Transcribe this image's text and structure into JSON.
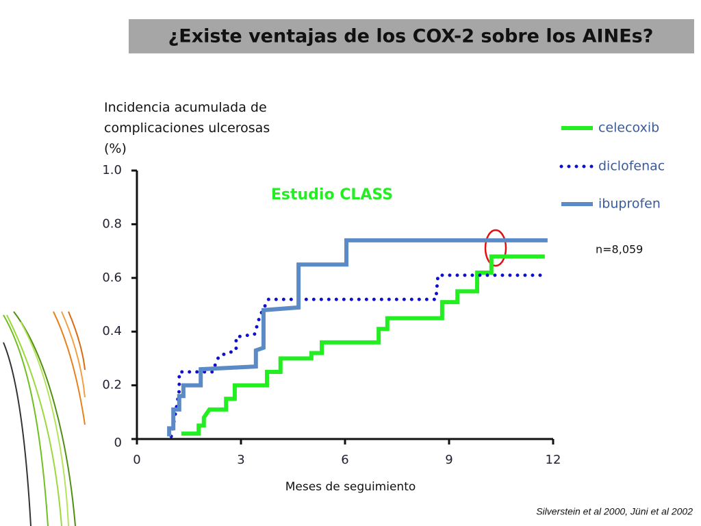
{
  "slide_title": "¿Existe ventajas de los COX-2 sobre los AINEs?",
  "citation": "Silverstein et al 2000, Jüni et al 2002",
  "chart_data": {
    "type": "step",
    "y_label": "Incidencia acumulada de complicaciones ulcerosas (%)",
    "x_label": "Meses de seguimiento",
    "annotation": "Estudio CLASS",
    "note": "n=8,059",
    "xlim": [
      0,
      12
    ],
    "xticks": [
      0,
      3,
      6,
      9,
      12
    ],
    "ylim": [
      0,
      1
    ],
    "yticks": [
      0,
      0.2,
      0.4,
      0.6,
      0.8,
      {
        "value": 1,
        "label": "1.0"
      }
    ],
    "series": [
      {
        "name": "celecoxib",
        "color": "#22ee22",
        "dash": "solid",
        "x": [
          1.28,
          1.78,
          1.78,
          1.93,
          1.93,
          2.09,
          2.57,
          2.57,
          2.82,
          2.82,
          3.75,
          3.75,
          4.14,
          4.14,
          5.03,
          5.03,
          5.33,
          5.33,
          6.97,
          6.97,
          7.22,
          7.22,
          8.8,
          8.8,
          9.24,
          9.24,
          9.81,
          9.81,
          10.22,
          10.22,
          11.76
        ],
        "values": [
          0.02,
          0.02,
          0.05,
          0.05,
          0.08,
          0.11,
          0.11,
          0.15,
          0.15,
          0.2,
          0.2,
          0.25,
          0.25,
          0.3,
          0.3,
          0.32,
          0.32,
          0.36,
          0.36,
          0.41,
          0.41,
          0.45,
          0.45,
          0.51,
          0.51,
          0.55,
          0.55,
          0.62,
          0.62,
          0.68,
          0.68
        ]
      },
      {
        "name": "diclofenac",
        "color": "#1010cc",
        "dash": "dotted",
        "x": [
          0.99,
          1.09,
          1.22,
          1.22,
          2.17,
          2.37,
          2.86,
          2.86,
          3.39,
          3.55,
          3.79,
          8.62,
          8.68,
          11.74
        ],
        "values": [
          0.01,
          0.08,
          0.18,
          0.25,
          0.25,
          0.31,
          0.33,
          0.38,
          0.39,
          0.46,
          0.52,
          0.52,
          0.61,
          0.61
        ]
      },
      {
        "name": "ibuprofen",
        "color": "#5b8ac6",
        "dash": "solid",
        "x": [
          0.93,
          0.93,
          1.05,
          1.05,
          1.22,
          1.22,
          1.34,
          1.34,
          1.84,
          1.84,
          3.43,
          3.43,
          3.65,
          3.65,
          4.66,
          4.66,
          6.04,
          6.04,
          11.84
        ],
        "values": [
          0.01,
          0.04,
          0.04,
          0.11,
          0.11,
          0.16,
          0.16,
          0.2,
          0.2,
          0.26,
          0.27,
          0.33,
          0.34,
          0.48,
          0.49,
          0.65,
          0.65,
          0.74,
          0.74
        ]
      }
    ]
  }
}
